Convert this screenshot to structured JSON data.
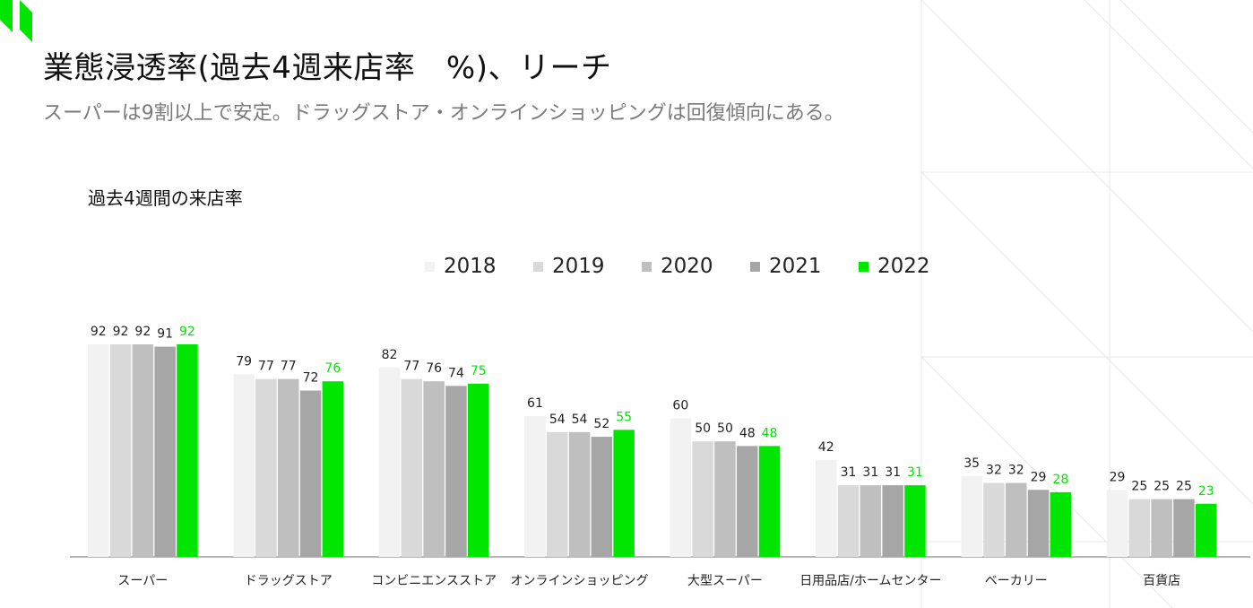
{
  "header": {
    "title": "業態浸透率(過去4週来店率　%)、リーチ",
    "subtitle": "スーパーは9割以上で安定。ドラッグストア・オンラインショッピングは回復傾向にある。"
  },
  "colors": {
    "accent": "#00e600",
    "s2018": "#f2f2f2",
    "s2019": "#d9d9d9",
    "s2020": "#bfbfbf",
    "s2021": "#a6a6a6",
    "s2022": "#00e600"
  },
  "chart_data": {
    "type": "bar",
    "title": "過去4週間の来店率",
    "categories": [
      "スーパー",
      "ドラッグストア",
      "コンビニエンスストア",
      "オンラインショッピング",
      "大型スーパー",
      "日用品店/ホームセンター",
      "ベーカリー",
      "百貨店"
    ],
    "series": [
      {
        "name": "2018",
        "color": "#f2f2f2",
        "values": [
          92,
          79,
          82,
          61,
          60,
          42,
          35,
          29
        ]
      },
      {
        "name": "2019",
        "color": "#d9d9d9",
        "values": [
          92,
          77,
          77,
          54,
          50,
          31,
          32,
          25
        ]
      },
      {
        "name": "2020",
        "color": "#bfbfbf",
        "values": [
          92,
          77,
          76,
          54,
          50,
          31,
          32,
          25
        ]
      },
      {
        "name": "2021",
        "color": "#a6a6a6",
        "values": [
          91,
          72,
          74,
          52,
          48,
          31,
          29,
          25
        ]
      },
      {
        "name": "2022",
        "color": "#00e600",
        "values": [
          92,
          76,
          75,
          55,
          48,
          31,
          28,
          23
        ]
      }
    ],
    "ylim": [
      0,
      92
    ],
    "legend": "top",
    "grid": false
  }
}
